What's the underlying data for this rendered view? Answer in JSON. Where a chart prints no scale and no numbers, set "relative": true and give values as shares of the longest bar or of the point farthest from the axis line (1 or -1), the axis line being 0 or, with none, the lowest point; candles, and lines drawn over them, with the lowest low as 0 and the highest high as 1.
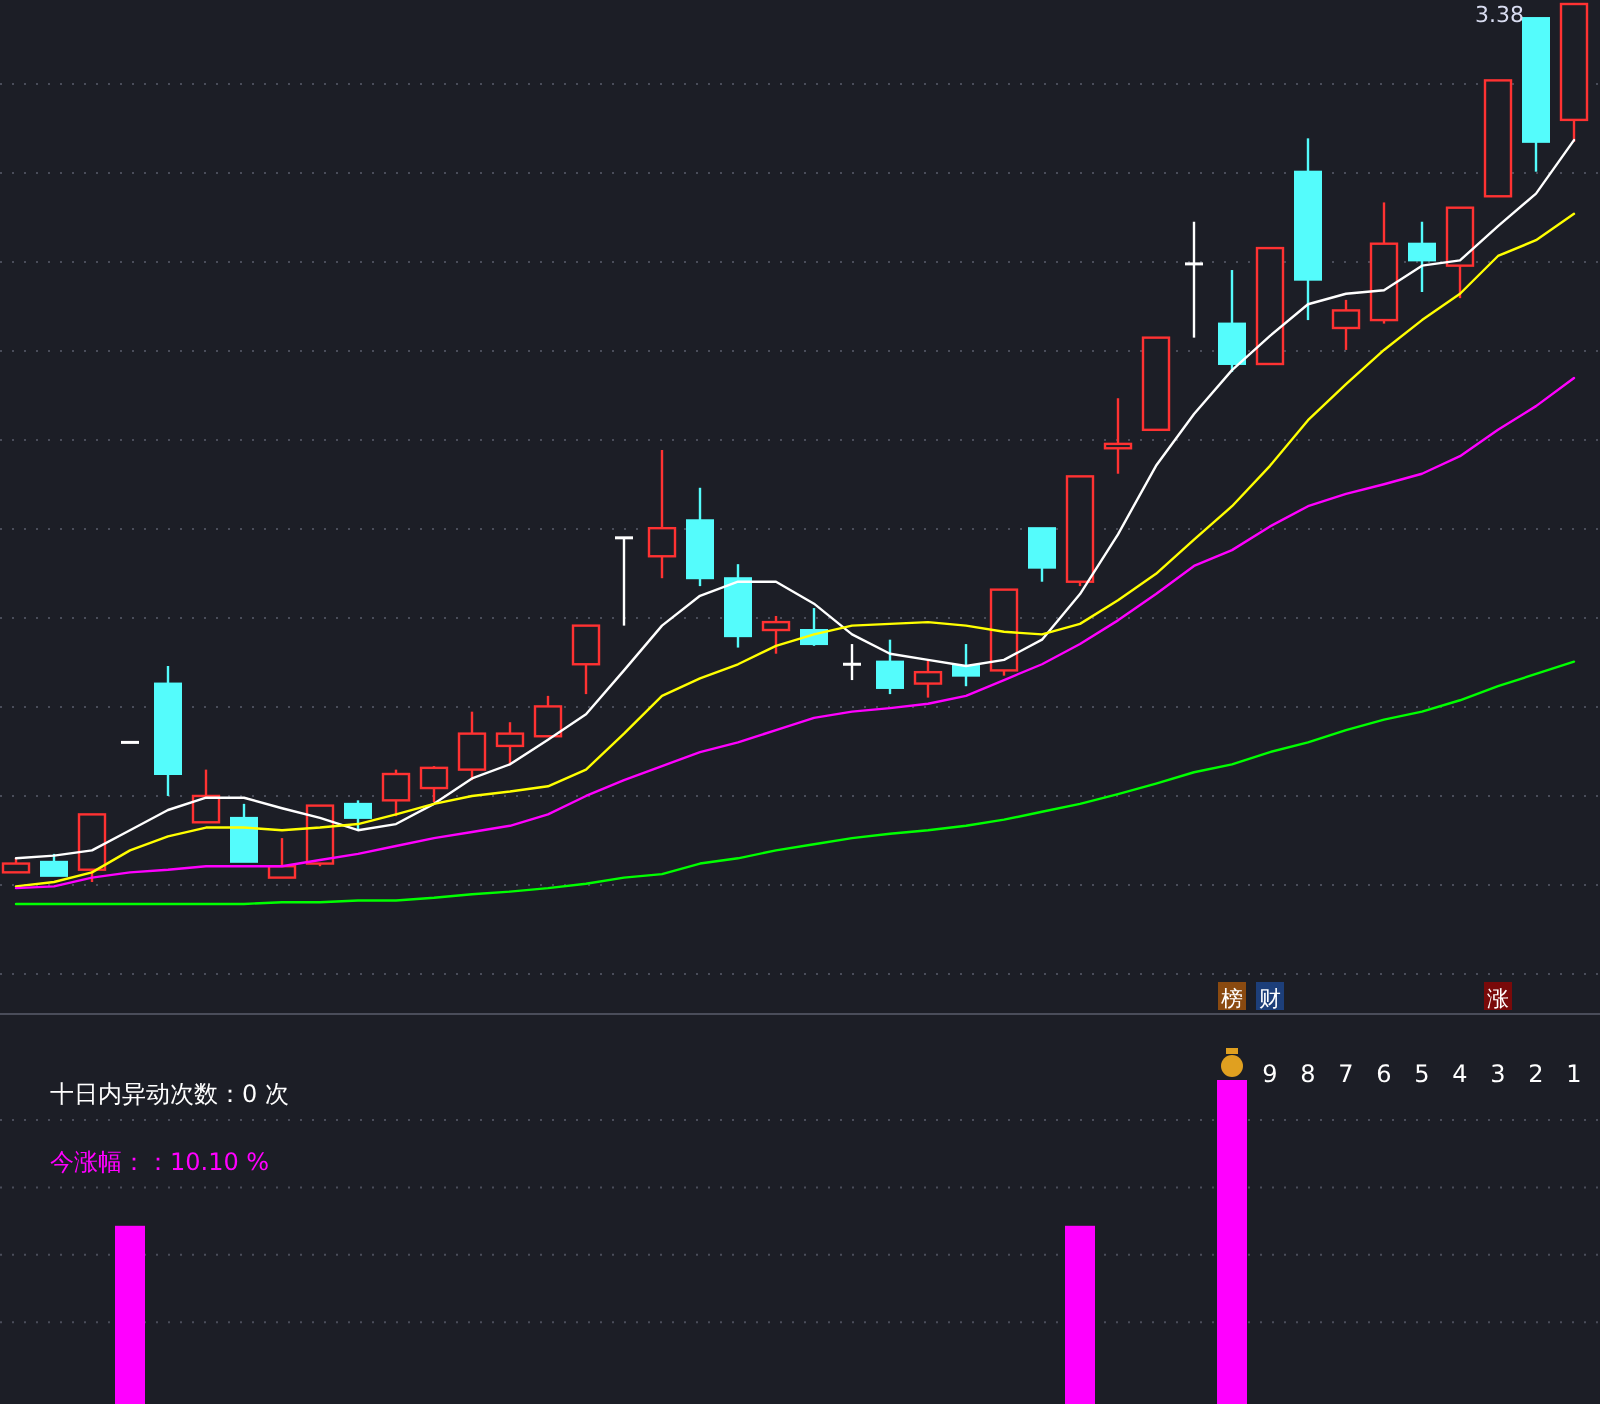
{
  "chart_data": [
    {
      "type": "candlestick",
      "relative": true,
      "grid": true,
      "categories": [
        null,
        null,
        null,
        null,
        null,
        null,
        null,
        null,
        null,
        null,
        null,
        null,
        null,
        null,
        null,
        null,
        null,
        null,
        null,
        null,
        null,
        null,
        null,
        null,
        null,
        null,
        null,
        null,
        null,
        null,
        null,
        null,
        null,
        null,
        null,
        null,
        null,
        null,
        null,
        null,
        null,
        null
      ],
      "ohlc": [
        [
          0.011,
          0.027,
          0.011,
          0.021
        ],
        [
          0.023,
          0.032,
          0.007,
          0.007
        ],
        [
          0.014,
          0.077,
          0,
          0.077
        ],
        [
          0.159,
          0.159,
          0.159,
          0.159
        ],
        [
          0.226,
          0.246,
          0.098,
          0.123
        ],
        [
          0.068,
          0.128,
          0.068,
          0.098
        ],
        [
          0.073,
          0.089,
          0.023,
          0.023
        ],
        [
          0.005,
          0.05,
          0.005,
          0.018
        ],
        [
          0.021,
          0.087,
          0.018,
          0.087
        ],
        [
          0.089,
          0.093,
          0.059,
          0.073
        ],
        [
          0.093,
          0.128,
          0.075,
          0.123
        ],
        [
          0.107,
          0.132,
          0.091,
          0.13
        ],
        [
          0.128,
          0.194,
          0.116,
          0.169
        ],
        [
          0.155,
          0.182,
          0.134,
          0.169
        ],
        [
          0.166,
          0.212,
          0.166,
          0.2
        ],
        [
          0.248,
          0.292,
          0.214,
          0.292
        ],
        [
          0.392,
          0.392,
          0.292,
          0.392
        ],
        [
          0.371,
          0.492,
          0.346,
          0.403
        ],
        [
          0.412,
          0.449,
          0.337,
          0.346
        ],
        [
          0.346,
          0.362,
          0.267,
          0.28
        ],
        [
          0.287,
          0.303,
          0.26,
          0.296
        ],
        [
          0.287,
          0.312,
          0.269,
          0.271
        ],
        [
          0.248,
          0.271,
          0.23,
          0.248
        ],
        [
          0.251,
          0.276,
          0.214,
          0.221
        ],
        [
          0.226,
          0.253,
          0.21,
          0.239
        ],
        [
          0.246,
          0.271,
          0.223,
          0.235
        ],
        [
          0.241,
          0.333,
          0.235,
          0.333
        ],
        [
          0.403,
          0.403,
          0.342,
          0.358
        ],
        [
          0.342,
          0.462,
          0.337,
          0.462
        ],
        [
          0.494,
          0.551,
          0.465,
          0.499
        ],
        [
          0.515,
          0.62,
          0.515,
          0.62
        ],
        [
          0.704,
          0.752,
          0.62,
          0.704
        ],
        [
          0.636,
          0.697,
          0.581,
          0.59
        ],
        [
          0.59,
          0.722,
          0.59,
          0.722
        ],
        [
          0.809,
          0.847,
          0.64,
          0.686
        ],
        [
          0.631,
          0.663,
          0.606,
          0.651
        ],
        [
          0.64,
          0.774,
          0.636,
          0.727
        ],
        [
          0.727,
          0.752,
          0.672,
          0.708
        ],
        [
          0.702,
          0.768,
          0.665,
          0.768
        ],
        [
          0.781,
          0.913,
          0.781,
          0.913
        ],
        [
          0.984,
          0.984,
          0.809,
          0.843
        ],
        [
          0.868,
          1,
          0.843,
          1
        ]
      ],
      "colors": [
        "#ff3232",
        "#54fcfc",
        "#ff3232",
        "#ffffff",
        "#54fcfc",
        "#ff3232",
        "#54fcfc",
        "#ff3232",
        "#ff3232",
        "#54fcfc",
        "#ff3232",
        "#ff3232",
        "#ff3232",
        "#ff3232",
        "#ff3232",
        "#ff3232",
        "#ffffff",
        "#ff3232",
        "#54fcfc",
        "#54fcfc",
        "#ff3232",
        "#54fcfc",
        "#ffffff",
        "#54fcfc",
        "#ff3232",
        "#54fcfc",
        "#ff3232",
        "#54fcfc",
        "#ff3232",
        "#ff3232",
        "#ff3232",
        "#ffffff",
        "#54fcfc",
        "#ff3232",
        "#54fcfc",
        "#ff3232",
        "#ff3232",
        "#54fcfc",
        "#ff3232",
        "#ff3232",
        "#54fcfc",
        "#ff3232"
      ],
      "series": [
        {
          "type": "line",
          "color": "#ffffff",
          "values": [
            0.027,
            0.03,
            0.036,
            0.059,
            0.082,
            0.096,
            0.096,
            0.084,
            0.073,
            0.059,
            0.066,
            0.089,
            0.118,
            0.134,
            0.162,
            0.191,
            0.241,
            0.292,
            0.326,
            0.342,
            0.342,
            0.317,
            0.282,
            0.26,
            0.253,
            0.246,
            0.253,
            0.276,
            0.328,
            0.396,
            0.474,
            0.533,
            0.583,
            0.622,
            0.658,
            0.67,
            0.674,
            0.702,
            0.708,
            0.747,
            0.784,
            0.845
          ]
        },
        {
          "type": "line",
          "color": "#ffff00",
          "values": [
            -0.005,
            0,
            0.011,
            0.036,
            0.052,
            0.062,
            0.062,
            0.059,
            0.062,
            0.066,
            0.077,
            0.089,
            0.098,
            0.103,
            0.109,
            0.128,
            0.169,
            0.212,
            0.232,
            0.248,
            0.269,
            0.282,
            0.292,
            0.294,
            0.296,
            0.292,
            0.285,
            0.282,
            0.294,
            0.321,
            0.351,
            0.39,
            0.428,
            0.474,
            0.526,
            0.567,
            0.606,
            0.64,
            0.67,
            0.713,
            0.731,
            0.761
          ]
        },
        {
          "type": "line",
          "color": "#ff00ff",
          "values": [
            -0.007,
            -0.005,
            0.005,
            0.011,
            0.014,
            0.018,
            0.018,
            0.018,
            0.025,
            0.032,
            0.041,
            0.05,
            0.057,
            0.064,
            0.077,
            0.098,
            0.116,
            0.132,
            0.148,
            0.159,
            0.173,
            0.187,
            0.194,
            0.198,
            0.203,
            0.212,
            0.23,
            0.248,
            0.271,
            0.298,
            0.328,
            0.36,
            0.378,
            0.405,
            0.428,
            0.442,
            0.453,
            0.465,
            0.485,
            0.515,
            0.542,
            0.574
          ]
        },
        {
          "type": "line",
          "color": "#00ff00",
          "values": [
            -0.025,
            -0.025,
            -0.025,
            -0.025,
            -0.025,
            -0.025,
            -0.025,
            -0.023,
            -0.023,
            -0.021,
            -0.021,
            -0.018,
            -0.014,
            -0.011,
            -0.007,
            -0.002,
            0.005,
            0.009,
            0.021,
            0.027,
            0.036,
            0.043,
            0.05,
            0.055,
            0.059,
            0.064,
            0.071,
            0.08,
            0.089,
            0.1,
            0.112,
            0.125,
            0.134,
            0.148,
            0.159,
            0.173,
            0.185,
            0.194,
            0.207,
            0.223,
            0.237,
            0.251
          ]
        }
      ],
      "annotations": [
        "3.38",
        "榜",
        "财",
        "涨"
      ]
    },
    {
      "type": "bar",
      "relative": true,
      "grid": true,
      "color": "#ff00ff",
      "categories": [
        null,
        null,
        null,
        null,
        null,
        null,
        null,
        null,
        null,
        null,
        null,
        null,
        null,
        null,
        null,
        null,
        null,
        null,
        null,
        null,
        null,
        null,
        null,
        null,
        null,
        null,
        null,
        null,
        null,
        null,
        null,
        null,
        null,
        null,
        null,
        null,
        null,
        null,
        null,
        null,
        null,
        null
      ],
      "values": [
        null,
        null,
        null,
        0.55,
        null,
        null,
        null,
        null,
        null,
        null,
        null,
        null,
        null,
        null,
        null,
        null,
        null,
        null,
        null,
        null,
        null,
        null,
        null,
        null,
        null,
        null,
        null,
        null,
        0.55,
        null,
        null,
        null,
        1,
        null,
        null,
        null,
        null,
        null,
        null,
        null,
        null,
        null
      ],
      "annotations": [
        "十日内异动次数：0 次",
        "今涨幅：：10.10 %",
        "9",
        "8",
        "7",
        "6",
        "5",
        "4",
        "3",
        "2",
        "1"
      ]
    }
  ]
}
